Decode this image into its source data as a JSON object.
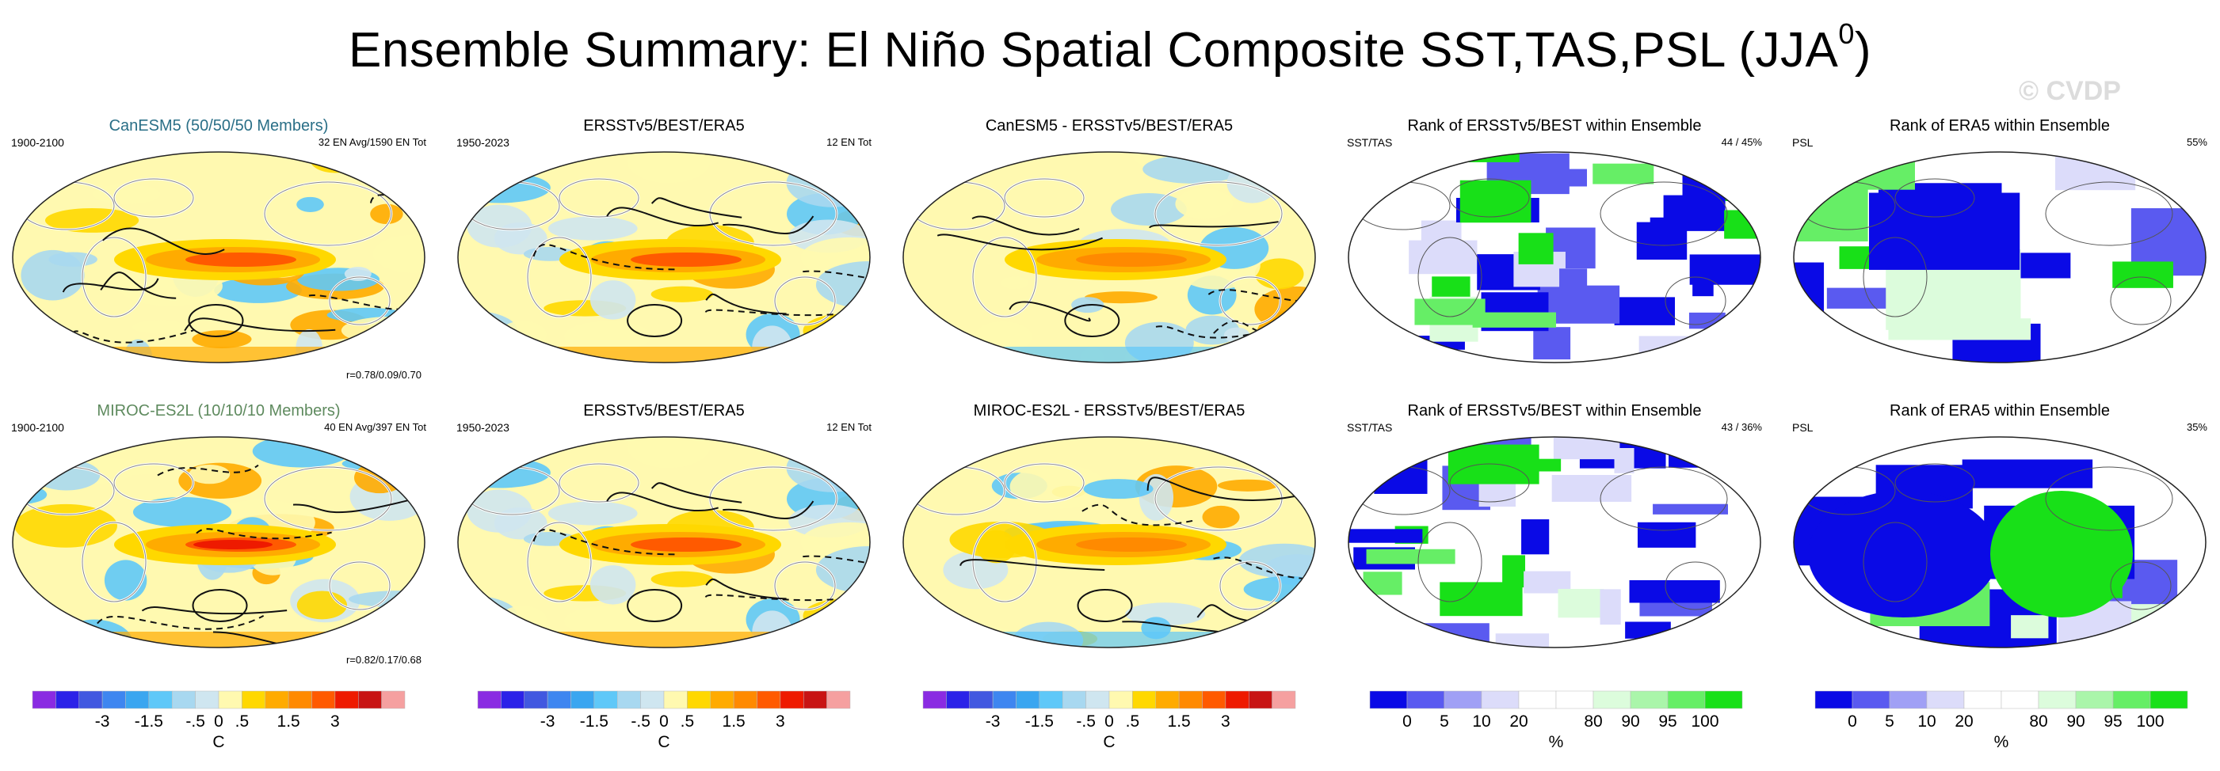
{
  "title": {
    "text": "Ensemble Summary: El Niño Spatial Composite SST,TAS,PSL (JJA",
    "superscript": "0",
    "close": ")"
  },
  "watermark": "© CVDP",
  "panels": [
    {
      "title": "CanESM5 (50/50/50 Members)",
      "title_color": "#2a6f87",
      "left": "1900-2100",
      "right": "32 EN Avg/1590 EN Tot",
      "bottom_right": "r=0.78/0.09/0.70",
      "kind": "sst",
      "seed": 11
    },
    {
      "title": "ERSSTv5/BEST/ERA5",
      "title_color": "#000000",
      "left": "1950-2023",
      "right": "12 EN Tot",
      "bottom_right": "",
      "kind": "sst",
      "seed": 23
    },
    {
      "title": "CanESM5 - ERSSTv5/BEST/ERA5",
      "title_color": "#000000",
      "left": "",
      "right": "",
      "bottom_right": "",
      "kind": "diff",
      "seed": 37
    },
    {
      "title": "Rank of ERSSTv5/BEST within Ensemble",
      "title_color": "#000000",
      "left": "SST/TAS",
      "right": "44 /  45%",
      "bottom_right": "",
      "kind": "rank",
      "seed": 41
    },
    {
      "title": "Rank of ERA5 within Ensemble",
      "title_color": "#000000",
      "left": "PSL",
      "right": "55%",
      "bottom_right": "",
      "kind": "rank2",
      "seed": 53
    },
    {
      "title": "MIROC-ES2L (10/10/10 Members)",
      "title_color": "#5e8a5e",
      "left": "1900-2100",
      "right": "40 EN Avg/397 EN Tot",
      "bottom_right": "r=0.82/0.17/0.68",
      "kind": "sst",
      "seed": 61
    },
    {
      "title": "ERSSTv5/BEST/ERA5",
      "title_color": "#000000",
      "left": "1950-2023",
      "right": "12 EN Tot",
      "bottom_right": "",
      "kind": "sst",
      "seed": 23
    },
    {
      "title": "MIROC-ES2L - ERSSTv5/BEST/ERA5",
      "title_color": "#000000",
      "left": "",
      "right": "",
      "bottom_right": "",
      "kind": "diff",
      "seed": 71
    },
    {
      "title": "Rank of ERSSTv5/BEST within Ensemble",
      "title_color": "#000000",
      "left": "SST/TAS",
      "right": "43 /  36%",
      "bottom_right": "",
      "kind": "rank",
      "seed": 83
    },
    {
      "title": "Rank of ERA5 within Ensemble",
      "title_color": "#000000",
      "left": "PSL",
      "right": "35%",
      "bottom_right": "",
      "kind": "rank2",
      "seed": 97
    }
  ],
  "colorbars": {
    "temperature": {
      "colors": [
        "#8a2be2",
        "#2b22e8",
        "#4158e0",
        "#3e86f0",
        "#3aa6f0",
        "#5fc8f8",
        "#a8d8f0",
        "#cfe6f0",
        "#fff9b0",
        "#ffd800",
        "#ffab00",
        "#ff8a00",
        "#ff5a00",
        "#ee1a00",
        "#c81414",
        "#f5a0a0"
      ],
      "ticks": [
        "-3",
        "-1.5",
        "-.5",
        "0",
        ".5",
        "1.5",
        "3"
      ],
      "unit": "C"
    },
    "rank": {
      "colors": [
        "#0a0ae6",
        "#5a5af0",
        "#a0a0f5",
        "#dcdcfa",
        "#ffffff",
        "#ffffff",
        "#dcfcdc",
        "#aaf5aa",
        "#66ee66",
        "#18e018"
      ],
      "ticks": [
        "0",
        "5",
        "10",
        "20",
        "80",
        "90",
        "95",
        "100"
      ],
      "unit": "%"
    }
  }
}
